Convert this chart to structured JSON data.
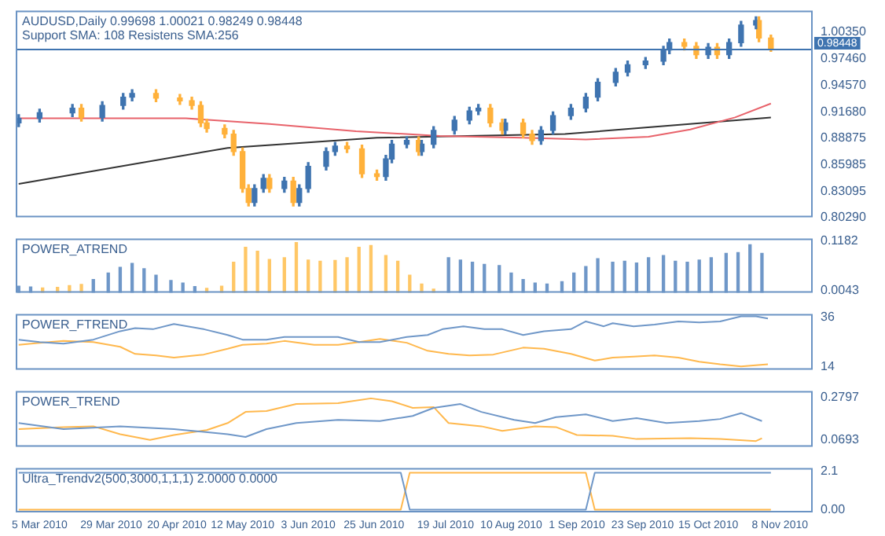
{
  "chart_data": [
    {
      "type": "candlestick",
      "title": "AUDUSD,Daily 0.99698 1.00021 0.98249 0.98448",
      "subtitle": "Support SMA: 108 Resistens SMA:256",
      "tick_labels": "y",
      "xlim": [
        "2010-02-25",
        "2010-11-19"
      ],
      "ylim": [
        0.8029,
        1.0266
      ],
      "yticks": [
        {
          "value": 1.0035,
          "label": "1.00350"
        },
        {
          "value": 0.9746,
          "label": "0.97460"
        },
        {
          "value": 0.9457,
          "label": "0.94570"
        },
        {
          "value": 0.9168,
          "label": "0.91680"
        },
        {
          "value": 0.88875,
          "label": "0.88875"
        },
        {
          "value": 0.85985,
          "label": "0.85985"
        },
        {
          "value": 0.83095,
          "label": "0.83095"
        },
        {
          "value": 0.8029,
          "label": "0.80290"
        }
      ],
      "ref_lines": [
        {
          "axis": "y",
          "value": 0.98448,
          "label": "0.98448",
          "color": "#3f74b0"
        }
      ],
      "x": [
        "2010-02-26",
        "2010-03-05",
        "2010-03-16",
        "2010-03-19",
        "2010-03-26",
        "2010-04-02",
        "2010-04-05",
        "2010-04-13",
        "2010-04-21",
        "2010-04-25",
        "2010-04-28",
        "2010-04-30",
        "2010-05-06",
        "2010-05-09",
        "2010-05-12",
        "2010-05-14",
        "2010-05-16",
        "2010-05-19",
        "2010-05-21",
        "2010-05-26",
        "2010-05-29",
        "2010-05-31",
        "2010-06-03",
        "2010-06-09",
        "2010-06-12",
        "2010-06-16",
        "2010-06-21",
        "2010-06-26",
        "2010-06-29",
        "2010-07-01",
        "2010-07-06",
        "2010-07-10",
        "2010-07-11",
        "2010-07-15",
        "2010-07-22",
        "2010-07-27",
        "2010-07-30",
        "2010-08-03",
        "2010-08-07",
        "2010-08-08",
        "2010-08-14",
        "2010-08-17",
        "2010-08-20",
        "2010-08-24",
        "2010-08-30",
        "2010-09-04",
        "2010-09-08",
        "2010-09-14",
        "2010-09-18",
        "2010-09-24",
        "2010-09-30",
        "2010-10-02",
        "2010-10-07",
        "2010-10-11",
        "2010-10-15",
        "2010-10-18",
        "2010-10-22",
        "2010-10-26",
        "2010-10-31",
        "2010-11-01",
        "2010-11-05"
      ],
      "ohlc": [
        [
          0.905,
          0.914,
          0.901,
          0.91
        ],
        [
          0.91,
          0.92,
          0.906,
          0.916
        ],
        [
          0.916,
          0.925,
          0.912,
          0.921
        ],
        [
          0.921,
          0.925,
          0.907,
          0.911
        ],
        [
          0.911,
          0.928,
          0.907,
          0.924
        ],
        [
          0.924,
          0.937,
          0.92,
          0.933
        ],
        [
          0.933,
          0.941,
          0.929,
          0.937
        ],
        [
          0.937,
          0.941,
          0.928,
          0.932
        ],
        [
          0.932,
          0.936,
          0.925,
          0.929
        ],
        [
          0.929,
          0.933,
          0.92,
          0.924
        ],
        [
          0.924,
          0.928,
          0.901,
          0.905
        ],
        [
          0.905,
          0.909,
          0.895,
          0.899
        ],
        [
          0.899,
          0.903,
          0.889,
          0.893
        ],
        [
          0.893,
          0.897,
          0.87,
          0.874
        ],
        [
          0.874,
          0.878,
          0.83,
          0.834
        ],
        [
          0.834,
          0.838,
          0.815,
          0.819
        ],
        [
          0.819,
          0.838,
          0.815,
          0.834
        ],
        [
          0.834,
          0.849,
          0.83,
          0.845
        ],
        [
          0.845,
          0.849,
          0.83,
          0.834
        ],
        [
          0.834,
          0.846,
          0.83,
          0.842
        ],
        [
          0.842,
          0.846,
          0.815,
          0.819
        ],
        [
          0.819,
          0.838,
          0.815,
          0.834
        ],
        [
          0.834,
          0.862,
          0.83,
          0.858
        ],
        [
          0.858,
          0.878,
          0.854,
          0.874
        ],
        [
          0.874,
          0.884,
          0.87,
          0.88
        ],
        [
          0.88,
          0.884,
          0.873,
          0.877
        ],
        [
          0.877,
          0.881,
          0.846,
          0.85
        ],
        [
          0.85,
          0.854,
          0.843,
          0.847
        ],
        [
          0.847,
          0.87,
          0.843,
          0.866
        ],
        [
          0.866,
          0.886,
          0.862,
          0.882
        ],
        [
          0.882,
          0.89,
          0.878,
          0.886
        ],
        [
          0.886,
          0.89,
          0.87,
          0.874
        ],
        [
          0.874,
          0.886,
          0.87,
          0.882
        ],
        [
          0.882,
          0.901,
          0.878,
          0.897
        ],
        [
          0.897,
          0.912,
          0.893,
          0.908
        ],
        [
          0.908,
          0.922,
          0.904,
          0.918
        ],
        [
          0.918,
          0.925,
          0.914,
          0.921
        ],
        [
          0.921,
          0.925,
          0.901,
          0.905
        ],
        [
          0.905,
          0.909,
          0.893,
          0.897
        ],
        [
          0.897,
          0.909,
          0.893,
          0.905
        ],
        [
          0.905,
          0.909,
          0.889,
          0.893
        ],
        [
          0.893,
          0.897,
          0.882,
          0.886
        ],
        [
          0.886,
          0.901,
          0.882,
          0.897
        ],
        [
          0.897,
          0.917,
          0.893,
          0.913
        ],
        [
          0.913,
          0.925,
          0.909,
          0.921
        ],
        [
          0.921,
          0.937,
          0.917,
          0.933
        ],
        [
          0.933,
          0.953,
          0.929,
          0.949
        ],
        [
          0.949,
          0.964,
          0.945,
          0.96
        ],
        [
          0.96,
          0.972,
          0.956,
          0.968
        ],
        [
          0.968,
          0.976,
          0.964,
          0.972
        ],
        [
          0.972,
          0.988,
          0.968,
          0.984
        ],
        [
          0.984,
          0.996,
          0.98,
          0.992
        ],
        [
          0.992,
          0.996,
          0.984,
          0.988
        ],
        [
          0.988,
          0.992,
          0.975,
          0.979
        ],
        [
          0.979,
          0.991,
          0.975,
          0.987
        ],
        [
          0.987,
          0.991,
          0.975,
          0.979
        ],
        [
          0.979,
          0.996,
          0.975,
          0.992
        ],
        [
          0.992,
          1.015,
          0.988,
          1.011
        ],
        [
          1.011,
          1.02,
          1.007,
          1.016
        ],
        [
          1.016,
          1.02,
          0.993,
          0.997
        ],
        [
          0.99698,
          1.00021,
          0.98249,
          0.98448
        ]
      ],
      "colors": [
        "#3f74b0",
        "#3f74b0",
        "#3f74b0",
        "#ffb13b",
        "#3f74b0",
        "#3f74b0",
        "#3f74b0",
        "#ffb13b",
        "#ffb13b",
        "#ffb13b",
        "#ffb13b",
        "#ffb13b",
        "#ffb13b",
        "#ffb13b",
        "#ffb13b",
        "#ffb13b",
        "#3f74b0",
        "#3f74b0",
        "#ffb13b",
        "#3f74b0",
        "#ffb13b",
        "#3f74b0",
        "#3f74b0",
        "#3f74b0",
        "#3f74b0",
        "#ffb13b",
        "#ffb13b",
        "#ffb13b",
        "#3f74b0",
        "#3f74b0",
        "#3f74b0",
        "#ffb13b",
        "#3f74b0",
        "#3f74b0",
        "#3f74b0",
        "#3f74b0",
        "#3f74b0",
        "#ffb13b",
        "#ffb13b",
        "#3f74b0",
        "#ffb13b",
        "#ffb13b",
        "#3f74b0",
        "#3f74b0",
        "#3f74b0",
        "#3f74b0",
        "#3f74b0",
        "#3f74b0",
        "#3f74b0",
        "#3f74b0",
        "#3f74b0",
        "#3f74b0",
        "#ffb13b",
        "#ffb13b",
        "#3f74b0",
        "#ffb13b",
        "#3f74b0",
        "#3f74b0",
        "#3f74b0",
        "#ffb13b",
        "#ffb13b"
      ],
      "series": [
        {
          "type": "line",
          "color": "#e8636b",
          "x": [
            "2010-02-26",
            "2010-04-23",
            "2010-05-21",
            "2010-06-19",
            "2010-07-17",
            "2010-08-14",
            "2010-09-04",
            "2010-09-25",
            "2010-10-09",
            "2010-10-24",
            "2010-11-05"
          ],
          "values": [
            0.91,
            0.91,
            0.904,
            0.896,
            0.891,
            0.889,
            0.887,
            0.89,
            0.898,
            0.911,
            0.926
          ]
        },
        {
          "type": "line",
          "color": "#333333",
          "x": [
            "2010-02-26",
            "2010-05-07",
            "2010-06-26",
            "2010-08-28",
            "2010-11-05"
          ],
          "values": [
            0.839,
            0.878,
            0.889,
            0.893,
            0.911
          ]
        }
      ]
    },
    {
      "type": "bar",
      "title": "POWER_ATREND",
      "tick_labels": "y",
      "xlim": [
        "2010-02-25",
        "2010-11-19"
      ],
      "ylim": [
        0,
        0.124
      ],
      "yticks": [
        0.1182,
        0.0043
      ],
      "x": [
        "2010-02-26",
        "2010-03-02",
        "2010-03-06",
        "2010-03-11",
        "2010-03-15",
        "2010-03-19",
        "2010-03-23",
        "2010-03-28",
        "2010-04-01",
        "2010-04-05",
        "2010-04-09",
        "2010-04-13",
        "2010-04-18",
        "2010-04-22",
        "2010-04-26",
        "2010-04-30",
        "2010-05-05",
        "2010-05-09",
        "2010-05-13",
        "2010-05-17",
        "2010-05-21",
        "2010-05-26",
        "2010-05-30",
        "2010-06-03",
        "2010-06-07",
        "2010-06-12",
        "2010-06-16",
        "2010-06-20",
        "2010-06-24",
        "2010-06-29",
        "2010-07-03",
        "2010-07-07",
        "2010-07-11",
        "2010-07-15",
        "2010-07-20",
        "2010-07-24",
        "2010-07-28",
        "2010-08-01",
        "2010-08-06",
        "2010-08-10",
        "2010-08-14",
        "2010-08-18",
        "2010-08-22",
        "2010-08-27",
        "2010-08-31",
        "2010-09-04",
        "2010-09-08",
        "2010-09-13",
        "2010-09-17",
        "2010-09-21",
        "2010-09-25",
        "2010-09-30",
        "2010-10-04",
        "2010-10-08",
        "2010-10-12",
        "2010-10-16",
        "2010-10-21",
        "2010-10-25",
        "2010-10-29",
        "2010-11-02"
      ],
      "values": [
        0.015,
        0.013,
        0.011,
        0.012,
        0.016,
        0.019,
        0.03,
        0.045,
        0.058,
        0.067,
        0.055,
        0.04,
        0.028,
        0.022,
        0.014,
        0.01,
        0.015,
        0.07,
        0.104,
        0.095,
        0.076,
        0.08,
        0.115,
        0.075,
        0.072,
        0.074,
        0.08,
        0.104,
        0.108,
        0.085,
        0.072,
        0.04,
        0.02,
        0.008,
        0.08,
        0.075,
        0.07,
        0.065,
        0.062,
        0.045,
        0.03,
        0.022,
        0.02,
        0.025,
        0.045,
        0.06,
        0.078,
        0.07,
        0.072,
        0.068,
        0.08,
        0.085,
        0.072,
        0.07,
        0.075,
        0.08,
        0.09,
        0.092,
        0.11,
        0.09
      ],
      "colors": [
        "#6f97c8",
        "#6f97c8",
        "#ffc766",
        "#ffc766",
        "#ffc766",
        "#ffc766",
        "#6f97c8",
        "#6f97c8",
        "#6f97c8",
        "#6f97c8",
        "#6f97c8",
        "#6f97c8",
        "#6f97c8",
        "#6f97c8",
        "#6f97c8",
        "#ffc766",
        "#ffc766",
        "#ffc766",
        "#ffc766",
        "#ffc766",
        "#ffc766",
        "#ffc766",
        "#ffc766",
        "#ffc766",
        "#ffc766",
        "#ffc766",
        "#ffc766",
        "#ffc766",
        "#ffc766",
        "#ffc766",
        "#ffc766",
        "#ffc766",
        "#ffc766",
        "#ffc766",
        "#6f97c8",
        "#6f97c8",
        "#6f97c8",
        "#6f97c8",
        "#6f97c8",
        "#6f97c8",
        "#6f97c8",
        "#6f97c8",
        "#6f97c8",
        "#6f97c8",
        "#6f97c8",
        "#6f97c8",
        "#6f97c8",
        "#6f97c8",
        "#6f97c8",
        "#6f97c8",
        "#6f97c8",
        "#6f97c8",
        "#6f97c8",
        "#6f97c8",
        "#6f97c8",
        "#6f97c8",
        "#6f97c8",
        "#6f97c8",
        "#6f97c8",
        "#6f97c8"
      ]
    },
    {
      "type": "line",
      "title": "POWER_FTREND",
      "tick_labels": "y",
      "xlim": [
        "2010-02-25",
        "2010-11-19"
      ],
      "ylim": [
        12.5,
        37.5
      ],
      "yticks": [
        36,
        14
      ],
      "series": [
        {
          "color": "#6f97c8",
          "x": [
            "2010-02-26",
            "2010-03-05",
            "2010-03-13",
            "2010-03-23",
            "2010-04-01",
            "2010-04-06",
            "2010-04-12",
            "2010-04-19",
            "2010-04-29",
            "2010-05-07",
            "2010-05-12",
            "2010-05-20",
            "2010-05-26",
            "2010-06-05",
            "2010-06-13",
            "2010-06-20",
            "2010-06-27",
            "2010-07-06",
            "2010-07-13",
            "2010-07-18",
            "2010-07-25",
            "2010-08-01",
            "2010-08-07",
            "2010-08-14",
            "2010-08-21",
            "2010-08-30",
            "2010-09-04",
            "2010-09-10",
            "2010-09-13",
            "2010-09-20",
            "2010-09-27",
            "2010-10-05",
            "2010-10-12",
            "2010-10-19",
            "2010-10-26",
            "2010-10-31",
            "2010-11-04"
          ],
          "values": [
            26.0,
            24.9,
            24.2,
            26.0,
            29.8,
            31.2,
            30.7,
            33.0,
            30.7,
            28.1,
            26.0,
            26.0,
            27.2,
            27.2,
            27.2,
            24.9,
            24.9,
            27.2,
            28.1,
            30.7,
            32.0,
            30.7,
            30.7,
            28.1,
            29.8,
            30.7,
            34.2,
            32.0,
            33.4,
            32.0,
            32.8,
            34.2,
            33.7,
            34.2,
            36.5,
            36.5,
            35.5
          ]
        },
        {
          "color": "#ffb84d",
          "x": [
            "2010-02-26",
            "2010-03-05",
            "2010-03-13",
            "2010-03-23",
            "2010-04-01",
            "2010-04-06",
            "2010-04-13",
            "2010-04-19",
            "2010-04-29",
            "2010-05-07",
            "2010-05-12",
            "2010-05-20",
            "2010-05-26",
            "2010-06-05",
            "2010-06-13",
            "2010-06-20",
            "2010-06-27",
            "2010-07-06",
            "2010-07-13",
            "2010-07-20",
            "2010-07-27",
            "2010-08-04",
            "2010-08-14",
            "2010-08-21",
            "2010-08-30",
            "2010-09-07",
            "2010-09-13",
            "2010-09-20",
            "2010-09-27",
            "2010-10-05",
            "2010-10-12",
            "2010-10-19",
            "2010-10-26",
            "2010-11-04"
          ],
          "values": [
            23.7,
            24.6,
            25.4,
            24.9,
            22.8,
            19.6,
            18.9,
            17.9,
            19.3,
            21.9,
            23.7,
            24.2,
            25.4,
            23.7,
            23.7,
            24.9,
            26.3,
            24.6,
            21.0,
            19.6,
            18.9,
            19.3,
            22.4,
            21.9,
            19.6,
            16.6,
            17.9,
            18.4,
            18.9,
            17.9,
            16.1,
            14.9,
            14.0,
            14.9
          ]
        }
      ]
    },
    {
      "type": "line",
      "title": "POWER_TREND",
      "tick_labels": "y",
      "xlim": [
        "2010-02-25",
        "2010-11-19"
      ],
      "ylim": [
        0.035,
        0.31
      ],
      "yticks": [
        0.2797,
        0.0693
      ],
      "series": [
        {
          "color": "#6f97c8",
          "x": [
            "2010-02-26",
            "2010-03-13",
            "2010-04-01",
            "2010-04-19",
            "2010-05-07",
            "2010-05-13",
            "2010-05-20",
            "2010-05-30",
            "2010-06-13",
            "2010-06-27",
            "2010-07-08",
            "2010-07-15",
            "2010-07-24",
            "2010-07-31",
            "2010-08-11",
            "2010-08-18",
            "2010-08-25",
            "2010-09-04",
            "2010-09-13",
            "2010-09-21",
            "2010-10-01",
            "2010-10-12",
            "2010-10-19",
            "2010-10-26",
            "2010-11-02"
          ],
          "values": [
            0.152,
            0.122,
            0.136,
            0.122,
            0.097,
            0.083,
            0.122,
            0.152,
            0.168,
            0.162,
            0.187,
            0.227,
            0.246,
            0.207,
            0.168,
            0.152,
            0.181,
            0.195,
            0.162,
            0.176,
            0.152,
            0.162,
            0.172,
            0.201,
            0.162
          ]
        },
        {
          "color": "#ffb84d",
          "x": [
            "2010-02-26",
            "2010-03-13",
            "2010-03-23",
            "2010-04-01",
            "2010-04-11",
            "2010-04-19",
            "2010-04-30",
            "2010-05-07",
            "2010-05-13",
            "2010-05-20",
            "2010-05-30",
            "2010-06-13",
            "2010-06-24",
            "2010-07-01",
            "2010-07-08",
            "2010-07-15",
            "2010-07-20",
            "2010-07-31",
            "2010-08-07",
            "2010-08-18",
            "2010-08-25",
            "2010-09-01",
            "2010-09-13",
            "2010-09-21",
            "2010-10-09",
            "2010-10-19",
            "2010-10-31",
            "2010-11-02"
          ],
          "values": [
            0.122,
            0.132,
            0.136,
            0.097,
            0.069,
            0.093,
            0.117,
            0.152,
            0.207,
            0.211,
            0.246,
            0.25,
            0.274,
            0.26,
            0.227,
            0.231,
            0.152,
            0.136,
            0.113,
            0.136,
            0.132,
            0.093,
            0.089,
            0.073,
            0.077,
            0.073,
            0.063,
            0.077
          ]
        }
      ]
    },
    {
      "type": "line",
      "title": "Ultra_Trendv2(500,3000,1,1,1) 2.0000 0.0000",
      "xlim": [
        "2010-02-25",
        "2010-11-19"
      ],
      "ylim": [
        -0.15,
        2.25
      ],
      "yticks": [
        2.1,
        {
          "value": 0,
          "label": "0.00"
        }
      ],
      "xticks": [
        {
          "value": "2010-03-05",
          "label": "5 Mar 2010"
        },
        {
          "value": "2010-03-29",
          "label": "29 Mar 2010"
        },
        {
          "value": "2010-04-20",
          "label": "20 Apr 2010"
        },
        {
          "value": "2010-05-12",
          "label": "12 May 2010"
        },
        {
          "value": "2010-06-03",
          "label": "3 Jun 2010"
        },
        {
          "value": "2010-06-25",
          "label": "25 Jun 2010"
        },
        {
          "value": "2010-07-19",
          "label": "19 Jul 2010"
        },
        {
          "value": "2010-08-10",
          "label": "10 Aug 2010"
        },
        {
          "value": "2010-09-01",
          "label": "1 Sep 2010"
        },
        {
          "value": "2010-09-23",
          "label": "23 Sep 2010"
        },
        {
          "value": "2010-10-15",
          "label": "15 Oct 2010"
        },
        {
          "value": "2010-11-08",
          "label": "8 Nov 2010"
        }
      ],
      "series": [
        {
          "color": "#6f97c8",
          "x": [
            "2010-02-26",
            "2010-07-04",
            "2010-07-07",
            "2010-09-04",
            "2010-09-07",
            "2010-11-05"
          ],
          "values": [
            2,
            2,
            0,
            0,
            2,
            2
          ]
        },
        {
          "color": "#ffb84d",
          "x": [
            "2010-02-26",
            "2010-07-04",
            "2010-07-07",
            "2010-09-04",
            "2010-09-07",
            "2010-11-05"
          ],
          "values": [
            0,
            0,
            2,
            2,
            0,
            0
          ]
        }
      ]
    }
  ]
}
